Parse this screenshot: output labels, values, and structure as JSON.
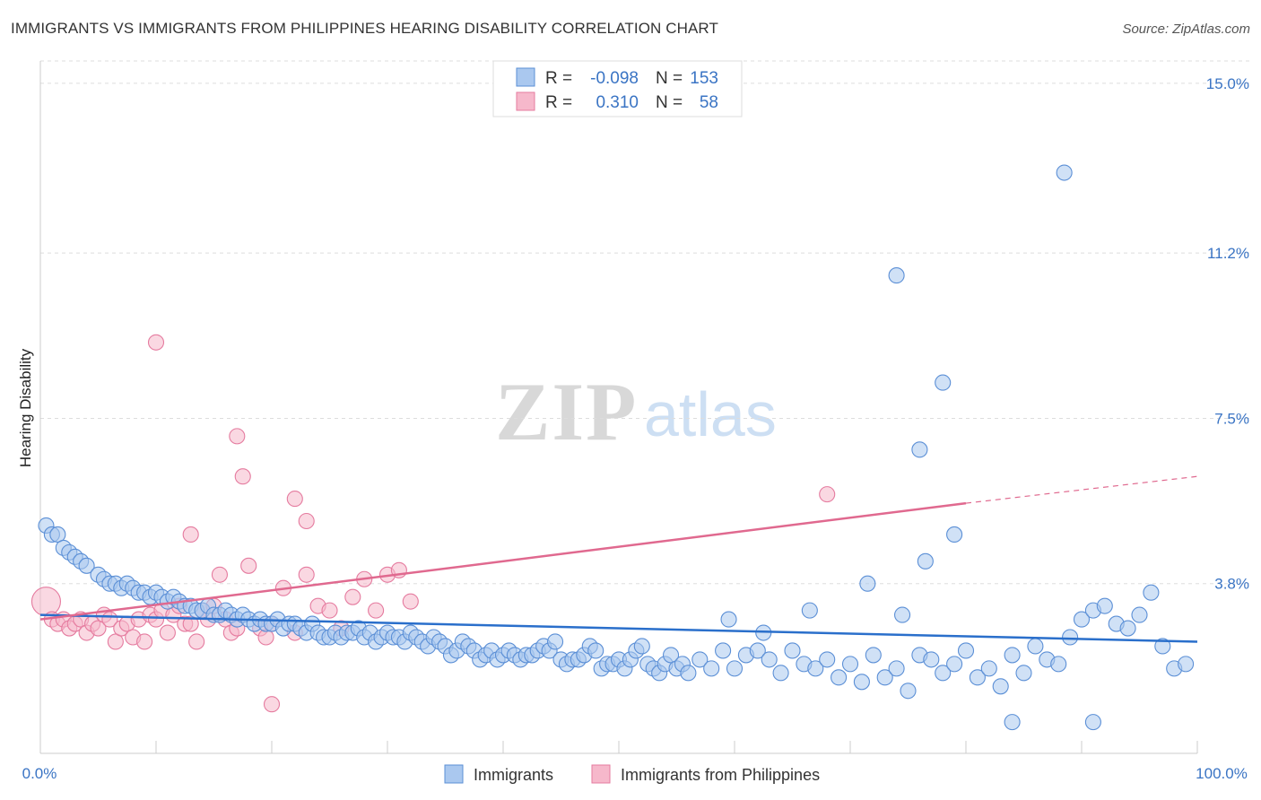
{
  "title": "IMMIGRANTS VS IMMIGRANTS FROM PHILIPPINES HEARING DISABILITY CORRELATION CHART",
  "source": "Source: ZipAtlas.com",
  "watermark": {
    "zip": "ZIP",
    "atlas": "atlas"
  },
  "legend_top": {
    "rows": [
      {
        "r_label": "R =",
        "r_value": "-0.098",
        "n_label": "N =",
        "n_value": "153"
      },
      {
        "r_label": "R =",
        "r_value": "0.310",
        "n_label": "N =",
        "n_value": "58"
      }
    ]
  },
  "legend_bottom": {
    "items": [
      {
        "label": "Immigrants"
      },
      {
        "label": "Immigrants from Philippines"
      }
    ]
  },
  "colors": {
    "blue_fill": "#aac8ef",
    "blue_stroke": "#5b8fd6",
    "blue_line": "#2a6fcb",
    "pink_fill": "#f6b8cb",
    "pink_stroke": "#e57b9f",
    "pink_line": "#e0698f",
    "grid": "#dddddd",
    "tick_text": "#3a74c4"
  },
  "chart_data": {
    "type": "scatter",
    "title": "IMMIGRANTS VS IMMIGRANTS FROM PHILIPPINES HEARING DISABILITY CORRELATION CHART",
    "xlabel": "",
    "ylabel": "Hearing Disability",
    "xlim": [
      0,
      100
    ],
    "ylim": [
      0,
      15.5
    ],
    "x_tick_labels": [
      "0.0%",
      "100.0%"
    ],
    "y_ticks": [
      3.8,
      7.5,
      11.2,
      15.0
    ],
    "y_tick_labels": [
      "3.8%",
      "7.5%",
      "11.2%",
      "15.0%"
    ],
    "grid": "horizontal dashed",
    "legend_position": "top-center",
    "series": [
      {
        "name": "Immigrants",
        "color": "#aac8ef",
        "trend": {
          "x": [
            0,
            100
          ],
          "y": [
            3.1,
            2.5
          ],
          "dashed_from": null
        },
        "points": [
          [
            0.5,
            5.1
          ],
          [
            1,
            4.9
          ],
          [
            1.5,
            4.9
          ],
          [
            2,
            4.6
          ],
          [
            2.5,
            4.5
          ],
          [
            3,
            4.4
          ],
          [
            3.5,
            4.3
          ],
          [
            4,
            4.2
          ],
          [
            5,
            4.0
          ],
          [
            5.5,
            3.9
          ],
          [
            6,
            3.8
          ],
          [
            6.5,
            3.8
          ],
          [
            7,
            3.7
          ],
          [
            7.5,
            3.8
          ],
          [
            8,
            3.7
          ],
          [
            8.5,
            3.6
          ],
          [
            9,
            3.6
          ],
          [
            9.5,
            3.5
          ],
          [
            10,
            3.6
          ],
          [
            10.5,
            3.5
          ],
          [
            11,
            3.4
          ],
          [
            11.5,
            3.5
          ],
          [
            12,
            3.4
          ],
          [
            12.5,
            3.3
          ],
          [
            13,
            3.3
          ],
          [
            13.5,
            3.2
          ],
          [
            14,
            3.2
          ],
          [
            14.5,
            3.3
          ],
          [
            15,
            3.1
          ],
          [
            15.5,
            3.1
          ],
          [
            16,
            3.2
          ],
          [
            16.5,
            3.1
          ],
          [
            17,
            3.0
          ],
          [
            17.5,
            3.1
          ],
          [
            18,
            3.0
          ],
          [
            18.5,
            2.9
          ],
          [
            19,
            3.0
          ],
          [
            19.5,
            2.9
          ],
          [
            20,
            2.9
          ],
          [
            20.5,
            3.0
          ],
          [
            21,
            2.8
          ],
          [
            21.5,
            2.9
          ],
          [
            22,
            2.9
          ],
          [
            22.5,
            2.8
          ],
          [
            23,
            2.7
          ],
          [
            23.5,
            2.9
          ],
          [
            24,
            2.7
          ],
          [
            24.5,
            2.6
          ],
          [
            25,
            2.6
          ],
          [
            25.5,
            2.7
          ],
          [
            26,
            2.6
          ],
          [
            26.5,
            2.7
          ],
          [
            27,
            2.7
          ],
          [
            27.5,
            2.8
          ],
          [
            28,
            2.6
          ],
          [
            28.5,
            2.7
          ],
          [
            29,
            2.5
          ],
          [
            29.5,
            2.6
          ],
          [
            30,
            2.7
          ],
          [
            30.5,
            2.6
          ],
          [
            31,
            2.6
          ],
          [
            31.5,
            2.5
          ],
          [
            32,
            2.7
          ],
          [
            32.5,
            2.6
          ],
          [
            33,
            2.5
          ],
          [
            33.5,
            2.4
          ],
          [
            34,
            2.6
          ],
          [
            34.5,
            2.5
          ],
          [
            35,
            2.4
          ],
          [
            35.5,
            2.2
          ],
          [
            36,
            2.3
          ],
          [
            36.5,
            2.5
          ],
          [
            37,
            2.4
          ],
          [
            37.5,
            2.3
          ],
          [
            38,
            2.1
          ],
          [
            38.5,
            2.2
          ],
          [
            39,
            2.3
          ],
          [
            39.5,
            2.1
          ],
          [
            40,
            2.2
          ],
          [
            40.5,
            2.3
          ],
          [
            41,
            2.2
          ],
          [
            41.5,
            2.1
          ],
          [
            42,
            2.2
          ],
          [
            42.5,
            2.2
          ],
          [
            43,
            2.3
          ],
          [
            43.5,
            2.4
          ],
          [
            44,
            2.3
          ],
          [
            44.5,
            2.5
          ],
          [
            45,
            2.1
          ],
          [
            45.5,
            2.0
          ],
          [
            46,
            2.1
          ],
          [
            46.5,
            2.1
          ],
          [
            47,
            2.2
          ],
          [
            47.5,
            2.4
          ],
          [
            48,
            2.3
          ],
          [
            48.5,
            1.9
          ],
          [
            49,
            2.0
          ],
          [
            49.5,
            2.0
          ],
          [
            50,
            2.1
          ],
          [
            50.5,
            1.9
          ],
          [
            51,
            2.1
          ],
          [
            51.5,
            2.3
          ],
          [
            52,
            2.4
          ],
          [
            52.5,
            2.0
          ],
          [
            53,
            1.9
          ],
          [
            53.5,
            1.8
          ],
          [
            54,
            2.0
          ],
          [
            54.5,
            2.2
          ],
          [
            55,
            1.9
          ],
          [
            55.5,
            2.0
          ],
          [
            56,
            1.8
          ],
          [
            57,
            2.1
          ],
          [
            58,
            1.9
          ],
          [
            59,
            2.3
          ],
          [
            60,
            1.9
          ],
          [
            61,
            2.2
          ],
          [
            62,
            2.3
          ],
          [
            63,
            2.1
          ],
          [
            64,
            1.8
          ],
          [
            65,
            2.3
          ],
          [
            66,
            2.0
          ],
          [
            67,
            1.9
          ],
          [
            68,
            2.1
          ],
          [
            69,
            1.7
          ],
          [
            70,
            2.0
          ],
          [
            71,
            1.6
          ],
          [
            72,
            2.2
          ],
          [
            73,
            1.7
          ],
          [
            74,
            1.9
          ],
          [
            75,
            1.4
          ],
          [
            76,
            2.2
          ],
          [
            77,
            2.1
          ],
          [
            78,
            1.8
          ],
          [
            79,
            2.0
          ],
          [
            80,
            2.3
          ],
          [
            81,
            1.7
          ],
          [
            82,
            1.9
          ],
          [
            83,
            1.5
          ],
          [
            84,
            2.2
          ],
          [
            85,
            1.8
          ],
          [
            86,
            2.4
          ],
          [
            87,
            2.1
          ],
          [
            88,
            2.0
          ],
          [
            89,
            2.6
          ],
          [
            90,
            3.0
          ],
          [
            91,
            3.2
          ],
          [
            92,
            3.3
          ],
          [
            93,
            2.9
          ],
          [
            94,
            2.8
          ],
          [
            95,
            3.1
          ],
          [
            96,
            3.6
          ],
          [
            97,
            2.4
          ],
          [
            98,
            1.9
          ],
          [
            99,
            2.0
          ],
          [
            59.5,
            3.0
          ],
          [
            62.5,
            2.7
          ],
          [
            66.5,
            3.2
          ],
          [
            71.5,
            3.8
          ],
          [
            74.5,
            3.1
          ],
          [
            76.5,
            4.3
          ],
          [
            76,
            6.8
          ],
          [
            78,
            8.3
          ],
          [
            79,
            4.9
          ],
          [
            88.5,
            13.0
          ],
          [
            74,
            10.7
          ],
          [
            84,
            0.7
          ],
          [
            91,
            0.7
          ]
        ]
      },
      {
        "name": "Immigrants from Philippines",
        "color": "#f6b8cb",
        "trend": {
          "x": [
            0,
            80
          ],
          "y": [
            3.0,
            5.6
          ],
          "dashed_to": [
            100,
            6.2
          ]
        },
        "points": [
          [
            0.5,
            3.4
          ],
          [
            1,
            3.0
          ],
          [
            1.5,
            2.9
          ],
          [
            2,
            3.0
          ],
          [
            2.5,
            2.8
          ],
          [
            3,
            2.9
          ],
          [
            3.5,
            3.0
          ],
          [
            4,
            2.7
          ],
          [
            4.5,
            2.9
          ],
          [
            5,
            2.8
          ],
          [
            5.5,
            3.1
          ],
          [
            6,
            3.0
          ],
          [
            6.5,
            2.5
          ],
          [
            7,
            2.8
          ],
          [
            7.5,
            2.9
          ],
          [
            8,
            2.6
          ],
          [
            8.5,
            3.0
          ],
          [
            9,
            2.5
          ],
          [
            9.5,
            3.1
          ],
          [
            10,
            3.0
          ],
          [
            10.5,
            3.2
          ],
          [
            11,
            2.7
          ],
          [
            11.5,
            3.1
          ],
          [
            12,
            3.3
          ],
          [
            12.5,
            2.9
          ],
          [
            13,
            2.9
          ],
          [
            13.5,
            2.5
          ],
          [
            14,
            3.2
          ],
          [
            14.5,
            3.0
          ],
          [
            15,
            3.3
          ],
          [
            15.5,
            4.0
          ],
          [
            16,
            3.0
          ],
          [
            16.5,
            2.7
          ],
          [
            17,
            2.8
          ],
          [
            18,
            4.2
          ],
          [
            19,
            2.8
          ],
          [
            19.5,
            2.6
          ],
          [
            20,
            2.9
          ],
          [
            21,
            3.7
          ],
          [
            22,
            2.7
          ],
          [
            23,
            4.0
          ],
          [
            24,
            3.3
          ],
          [
            25,
            3.2
          ],
          [
            26,
            2.8
          ],
          [
            27,
            3.5
          ],
          [
            28,
            3.9
          ],
          [
            29,
            3.2
          ],
          [
            30,
            4.0
          ],
          [
            31,
            4.1
          ],
          [
            32,
            3.4
          ],
          [
            10,
            9.2
          ],
          [
            17,
            7.1
          ],
          [
            17.5,
            6.2
          ],
          [
            22,
            5.7
          ],
          [
            23,
            5.2
          ],
          [
            13,
            4.9
          ],
          [
            20,
            1.1
          ],
          [
            68,
            5.8
          ]
        ]
      }
    ]
  },
  "axes": {
    "ylabel": "Hearing Disability",
    "x_left_label": "0.0%",
    "x_right_label": "100.0%",
    "y_labels": [
      "15.0%",
      "11.2%",
      "7.5%",
      "3.8%"
    ]
  }
}
